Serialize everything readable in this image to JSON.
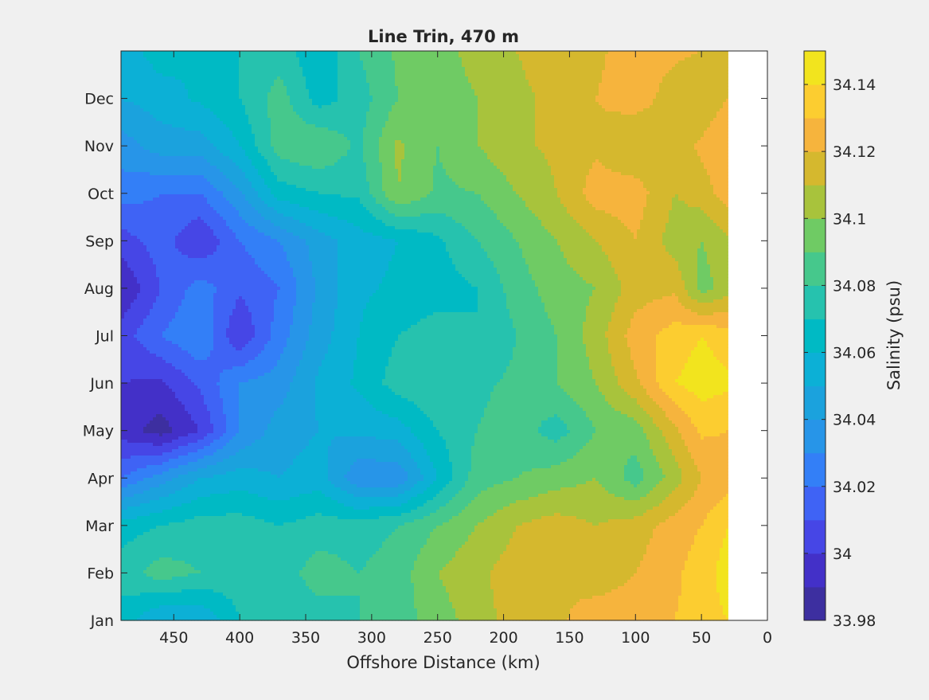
{
  "chart_data": {
    "type": "heatmap",
    "subtype": "filled-contour",
    "title": "Line Trin, 470 m",
    "xlabel": "Offshore Distance (km)",
    "ylabel": "",
    "x_reversed": true,
    "xlim": [
      0,
      490
    ],
    "x_ticks": [
      450,
      400,
      350,
      300,
      250,
      200,
      150,
      100,
      50,
      0
    ],
    "y_ticks": [
      "Jan",
      "Feb",
      "Mar",
      "Apr",
      "May",
      "Jun",
      "Jul",
      "Aug",
      "Sep",
      "Oct",
      "Nov",
      "Dec"
    ],
    "data_x_range_km": [
      30,
      490
    ],
    "colorbar": {
      "label": "Salinity (psu)",
      "range": [
        33.98,
        34.15
      ],
      "tick_values": [
        33.98,
        34,
        34.02,
        34.04,
        34.06,
        34.08,
        34.1,
        34.12,
        34.14
      ],
      "tick_labels": [
        "33.98",
        "34",
        "34.02",
        "34.04",
        "34.06",
        "34.08",
        "34.1",
        "34.12",
        "34.14"
      ],
      "levels": [
        {
          "range": [
            33.98,
            33.99
          ],
          "color": "#3d2fa0"
        },
        {
          "range": [
            33.99,
            34.0
          ],
          "color": "#4330c8"
        },
        {
          "range": [
            34.0,
            34.01
          ],
          "color": "#4646e6"
        },
        {
          "range": [
            34.01,
            34.02
          ],
          "color": "#3f63f5"
        },
        {
          "range": [
            34.02,
            34.03
          ],
          "color": "#337ff7"
        },
        {
          "range": [
            34.03,
            34.04
          ],
          "color": "#2795e8"
        },
        {
          "range": [
            34.04,
            34.05
          ],
          "color": "#1ba2dd"
        },
        {
          "range": [
            34.05,
            34.06
          ],
          "color": "#0cb0d6"
        },
        {
          "range": [
            34.06,
            34.07
          ],
          "color": "#00bac4"
        },
        {
          "range": [
            34.07,
            34.08
          ],
          "color": "#26c2ae"
        },
        {
          "range": [
            34.08,
            34.09
          ],
          "color": "#46c88c"
        },
        {
          "range": [
            34.09,
            34.1
          ],
          "color": "#6fcb64"
        },
        {
          "range": [
            34.1,
            34.11
          ],
          "color": "#a8c33c"
        },
        {
          "range": [
            34.11,
            34.12
          ],
          "color": "#d5b82e"
        },
        {
          "range": [
            34.12,
            34.13
          ],
          "color": "#f6b43d"
        },
        {
          "range": [
            34.13,
            34.14
          ],
          "color": "#fccd30"
        },
        {
          "range": [
            34.14,
            34.15
          ],
          "color": "#f2e41e"
        }
      ]
    },
    "anchor_rows": {
      "x_km": [
        490,
        460,
        430,
        400,
        370,
        340,
        310,
        280,
        250,
        220,
        190,
        160,
        130,
        100,
        70,
        50,
        30
      ],
      "rows": [
        {
          "month": "Jan",
          "salinity": [
            34.065,
            34.05,
            34.05,
            34.07,
            34.072,
            34.075,
            34.08,
            34.085,
            34.095,
            34.105,
            34.115,
            34.118,
            34.125,
            34.125,
            34.13,
            34.135,
            34.14
          ]
        },
        {
          "month": "Feb",
          "salinity": [
            34.075,
            34.085,
            34.08,
            34.075,
            34.075,
            34.085,
            34.08,
            34.085,
            34.1,
            34.108,
            34.115,
            34.12,
            34.115,
            34.12,
            34.128,
            34.135,
            34.145
          ]
        },
        {
          "month": "Mar",
          "salinity": [
            34.065,
            34.07,
            34.075,
            34.075,
            34.07,
            34.075,
            34.075,
            34.08,
            34.09,
            34.1,
            34.11,
            34.115,
            34.11,
            34.115,
            34.125,
            34.13,
            34.14
          ]
        },
        {
          "month": "Apr",
          "salinity": [
            34.02,
            34.035,
            34.05,
            34.055,
            34.05,
            34.055,
            34.032,
            34.032,
            34.06,
            34.085,
            34.09,
            34.095,
            34.1,
            34.085,
            34.105,
            34.12,
            34.125
          ]
        },
        {
          "month": "May",
          "salinity": [
            33.995,
            33.985,
            34.0,
            34.03,
            34.045,
            34.05,
            34.052,
            34.055,
            34.07,
            34.08,
            34.085,
            34.075,
            34.09,
            34.095,
            34.118,
            34.132,
            34.13
          ]
        },
        {
          "month": "Jun",
          "salinity": [
            34.0,
            33.998,
            34.012,
            34.03,
            34.035,
            34.052,
            34.062,
            34.075,
            34.08,
            34.078,
            34.082,
            34.09,
            34.1,
            34.118,
            34.14,
            34.145,
            34.142
          ]
        },
        {
          "month": "Jul",
          "salinity": [
            34.005,
            34.02,
            34.03,
            34.0,
            34.025,
            34.045,
            34.06,
            34.07,
            34.075,
            34.07,
            34.08,
            34.09,
            34.105,
            34.125,
            34.135,
            34.14,
            34.135
          ]
        },
        {
          "month": "Aug",
          "salinity": [
            33.99,
            34.01,
            34.025,
            34.012,
            34.02,
            34.042,
            34.058,
            34.062,
            34.065,
            34.07,
            34.085,
            34.095,
            34.1,
            34.115,
            34.118,
            34.095,
            34.105
          ]
        },
        {
          "month": "Sep",
          "salinity": [
            34.005,
            34.015,
            34.0,
            34.02,
            34.03,
            34.045,
            34.055,
            34.06,
            34.068,
            34.08,
            34.09,
            34.1,
            34.11,
            34.12,
            34.105,
            34.1,
            34.108
          ]
        },
        {
          "month": "Oct",
          "salinity": [
            34.025,
            34.02,
            34.02,
            34.038,
            34.065,
            34.07,
            34.072,
            34.1,
            34.088,
            34.09,
            34.1,
            34.11,
            34.125,
            34.125,
            34.11,
            34.115,
            34.125
          ]
        },
        {
          "month": "Nov",
          "salinity": [
            34.035,
            34.045,
            34.045,
            34.06,
            34.085,
            34.09,
            34.078,
            34.102,
            34.09,
            34.1,
            34.108,
            34.112,
            34.118,
            34.11,
            34.115,
            34.122,
            34.13
          ]
        },
        {
          "month": "Dec",
          "salinity": [
            34.05,
            34.055,
            34.062,
            34.07,
            34.085,
            34.065,
            34.075,
            34.09,
            34.092,
            34.1,
            34.108,
            34.112,
            34.12,
            34.125,
            34.115,
            34.112,
            34.12
          ]
        },
        {
          "month": "Jan",
          "salinity": [
            34.055,
            34.065,
            34.06,
            34.07,
            34.075,
            34.062,
            34.08,
            34.092,
            34.095,
            34.105,
            34.11,
            34.115,
            34.118,
            34.125,
            34.122,
            34.12,
            34.12
          ]
        }
      ]
    }
  }
}
